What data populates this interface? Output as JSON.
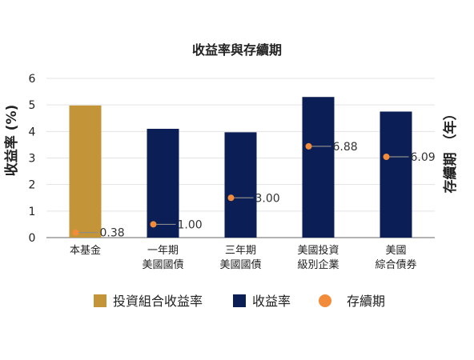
{
  "chart_data": {
    "type": "bar",
    "title": "收益率與存續期",
    "ylabel": "收益率 (%)",
    "y2label": "存續期 （年）",
    "ylim": [
      0,
      6
    ],
    "y2lim": [
      0,
      12
    ],
    "yticks": [
      0,
      1,
      2,
      3,
      4,
      5,
      6
    ],
    "grid": true,
    "legend_position": "bottom",
    "categories": [
      [
        "本基金"
      ],
      [
        "一年期",
        "美國國債"
      ],
      [
        "三年期",
        "美國國債"
      ],
      [
        "美國投資",
        "級別企業"
      ],
      [
        "美國",
        "綜合債券"
      ]
    ],
    "yield_values": [
      4.98,
      4.1,
      3.97,
      5.3,
      4.75
    ],
    "duration_values": [
      0.38,
      1.0,
      3.0,
      6.88,
      6.09
    ],
    "duration_labels": [
      "0.38",
      "1.00",
      "3.00",
      "6.88",
      "6.09"
    ],
    "colors": {
      "fund": "#C39538",
      "benchmark": "#0B1E56",
      "duration": "#F28C3A",
      "grid": "#E3E3E3",
      "axis": "#9A9A9A",
      "text": "#222222"
    },
    "legend": [
      {
        "label": "投資組合收益率",
        "kind": "fund"
      },
      {
        "label": "收益率",
        "kind": "benchmark"
      },
      {
        "label": "存續期",
        "kind": "duration"
      }
    ]
  }
}
